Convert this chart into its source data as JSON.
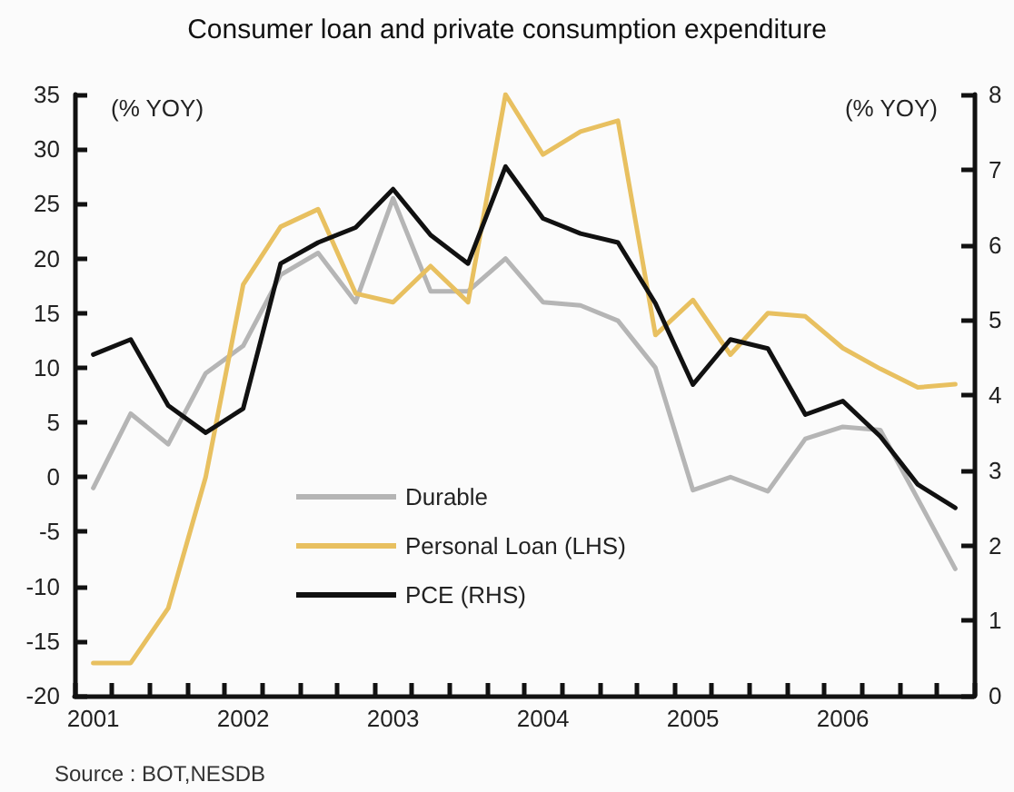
{
  "chart_data": {
    "type": "line",
    "title": "Consumer loan and private consumption expenditure",
    "ylabel": "(% YOY)",
    "y2label": "(% YOY)",
    "categories": [
      "2001",
      null,
      null,
      null,
      "2002",
      null,
      null,
      null,
      "2003",
      null,
      null,
      null,
      "2004",
      null,
      null,
      null,
      "2005",
      null,
      null,
      null,
      "2006",
      null,
      null,
      null
    ],
    "series": [
      {
        "name": "Durable",
        "color": "#b5b5b5",
        "values": [
          -1,
          5.8,
          3,
          9.5,
          12,
          18.5,
          20.5,
          16,
          25.5,
          17,
          17,
          20,
          16,
          15.7,
          14.3,
          10,
          -1.2,
          0,
          -1.3,
          3.5,
          4.6,
          4.3,
          -2,
          -8.4
        ]
      },
      {
        "name": "Personal Loan (LHS)",
        "color": "#e8c060",
        "values": [
          -17,
          -17,
          -12,
          0,
          17.6,
          22.9,
          24.5,
          16.8,
          16,
          19.3,
          16,
          35,
          29.5,
          31.6,
          32.6,
          13,
          16.2,
          11.2,
          15,
          14.7,
          11.8,
          9.9,
          8.2,
          8.5
        ]
      },
      {
        "name": "PCE (RHS)",
        "color": "#111111",
        "axis": "y2",
        "values": [
          4.54,
          4.74,
          3.86,
          3.5,
          3.82,
          5.75,
          6.03,
          6.23,
          6.74,
          6.13,
          5.75,
          7.04,
          6.35,
          6.15,
          6.03,
          5.22,
          4.14,
          4.74,
          4.62,
          3.74,
          3.92,
          3.45,
          2.81,
          2.5
        ]
      }
    ],
    "ylim": [
      -20,
      35
    ],
    "yticks": [
      -20,
      -15,
      -10,
      -5,
      0,
      5,
      10,
      15,
      20,
      25,
      30,
      35
    ],
    "y2lim": [
      0,
      8
    ],
    "y2ticks": [
      0,
      1,
      2,
      3,
      4,
      5,
      6,
      7,
      8
    ],
    "legend": "bottom",
    "grid": false,
    "marker": "none",
    "line_style": "solid",
    "annotations": [
      "Source : BOT,NESDB"
    ]
  }
}
